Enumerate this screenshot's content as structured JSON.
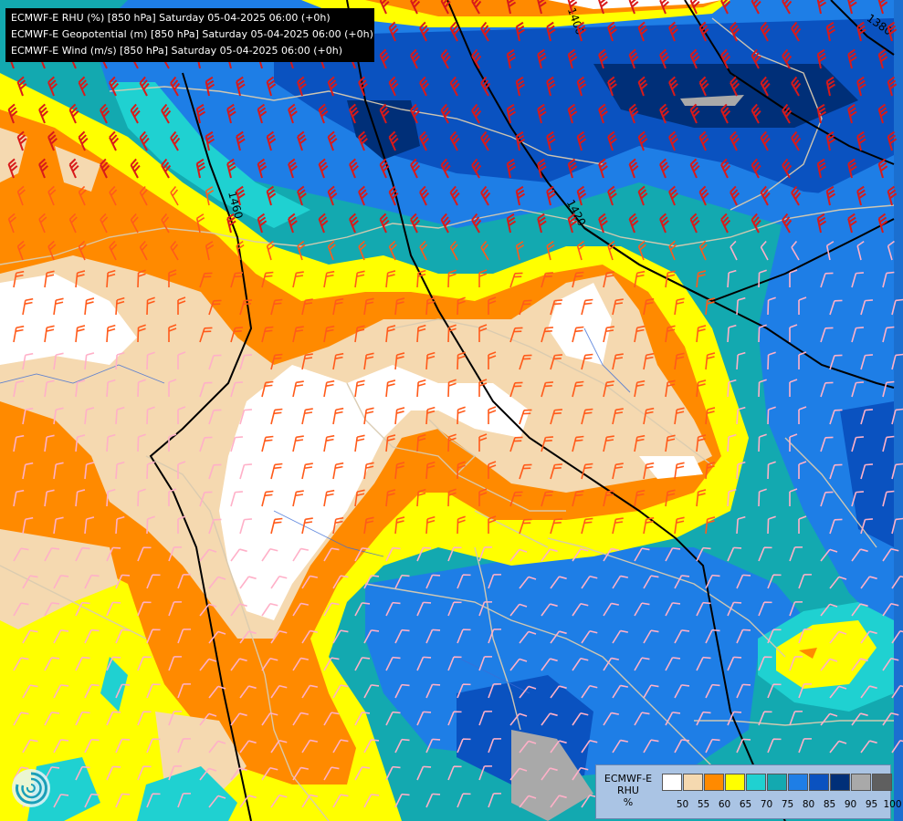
{
  "title_lines": [
    "ECMWF-E RHU (%) [850 hPa] Saturday 05-04-2025 06:00 (+0h)",
    "ECMWF-E Geopotential (m) [850 hPa] Saturday 05-04-2025 06:00 (+0h)",
    "ECMWF-E Wind (m/s) [850 hPa] Saturday 05-04-2025 06:00 (+0h)"
  ],
  "legend": {
    "title_line1": "ECMWF-E",
    "title_line2": "RHU",
    "unit": "%",
    "values": [
      "50",
      "55",
      "60",
      "65",
      "70",
      "75",
      "80",
      "85",
      "90",
      "95",
      "100"
    ],
    "colors": [
      "#ffffff",
      "#f5d9b0",
      "#ff8a00",
      "#ffff00",
      "#1fd1d1",
      "#13a9b0",
      "#1e7ee6",
      "#0a52c0",
      "#002f78",
      "#a9a9a9",
      "#5f5f5f"
    ]
  },
  "contour_labels": [
    "1460",
    "1420",
    "1400",
    "1380"
  ],
  "colors": {
    "barb_high": "#d81a1a",
    "barb_mid": "#ff5a1a",
    "barb_low": "#ffb0c8",
    "border": "#d9cbb0",
    "isohypse": "#000000"
  }
}
